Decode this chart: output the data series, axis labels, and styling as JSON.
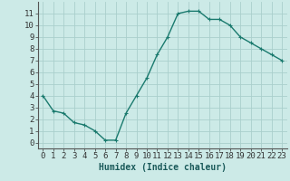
{
  "x": [
    0,
    1,
    2,
    3,
    4,
    5,
    6,
    7,
    8,
    9,
    10,
    11,
    12,
    13,
    14,
    15,
    16,
    17,
    18,
    19,
    20,
    21,
    22,
    23
  ],
  "y": [
    4.0,
    2.7,
    2.5,
    1.7,
    1.5,
    1.0,
    0.2,
    0.2,
    2.5,
    4.0,
    5.5,
    7.5,
    9.0,
    11.0,
    11.2,
    11.2,
    10.5,
    10.5,
    10.0,
    9.0,
    8.5,
    8.0,
    7.5,
    7.0
  ],
  "line_color": "#1a7a6e",
  "marker": "+",
  "marker_size": 3,
  "bg_color": "#cceae7",
  "grid_color": "#aacfcc",
  "xlabel": "Humidex (Indice chaleur)",
  "xlabel_fontsize": 7,
  "ylabel_ticks": [
    0,
    1,
    2,
    3,
    4,
    5,
    6,
    7,
    8,
    9,
    10,
    11
  ],
  "xlim": [
    -0.5,
    23.5
  ],
  "ylim": [
    -0.5,
    12.0
  ],
  "xtick_labels": [
    "0",
    "1",
    "2",
    "3",
    "4",
    "5",
    "6",
    "7",
    "8",
    "9",
    "10",
    "11",
    "12",
    "13",
    "14",
    "15",
    "16",
    "17",
    "18",
    "19",
    "20",
    "21",
    "22",
    "23"
  ],
  "tick_fontsize": 6.5,
  "linewidth": 1.0
}
